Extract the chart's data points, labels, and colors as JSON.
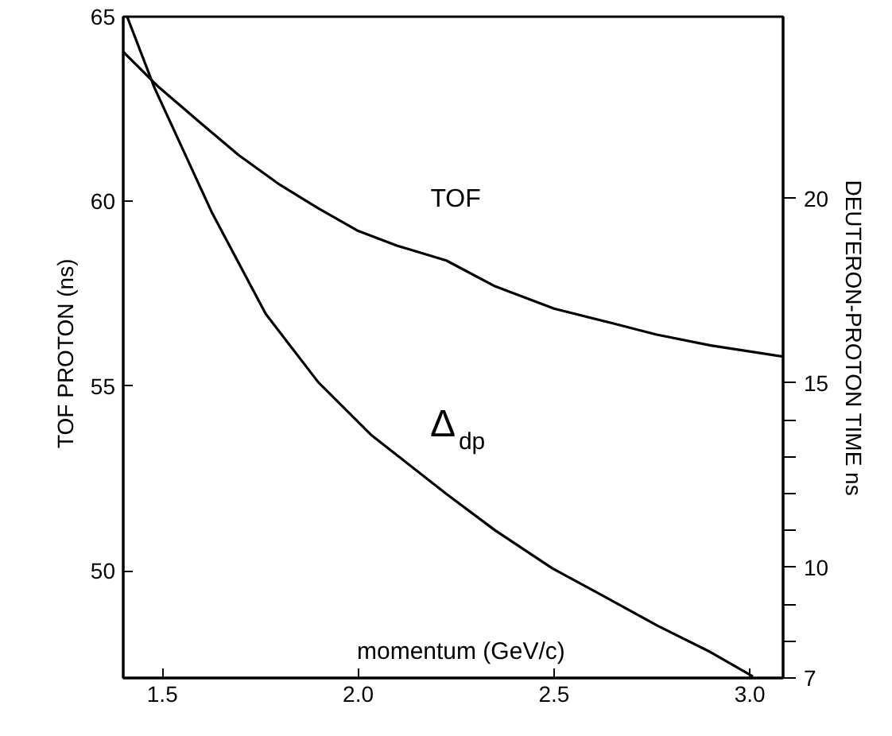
{
  "chart_data": {
    "type": "line",
    "xlabel": "momentum (GeV/c)",
    "ylabel": "TOF  PROTON  (ns)",
    "y2label": "DEUTERON-PROTON  TIME   ns",
    "xlim": [
      1.4,
      3.085
    ],
    "xticks": [
      1.5,
      {
        "value": 2,
        "label": "2.0"
      },
      2.5,
      {
        "value": 3,
        "label": "3.0"
      }
    ],
    "ylim": [
      47.1,
      65
    ],
    "yticks": [
      50,
      55,
      60,
      65
    ],
    "y2lim": [
      7,
      24.93
    ],
    "y2ticks": [
      7,
      {
        "value": 8,
        "label": null
      },
      {
        "value": 9,
        "label": null
      },
      10,
      {
        "value": 11,
        "label": null
      },
      {
        "value": 12,
        "label": null
      },
      {
        "value": 13,
        "label": null
      },
      {
        "value": 14,
        "label": null
      },
      15,
      20
    ],
    "grid": false,
    "legend": false,
    "marker": "none",
    "line_style": "solid",
    "series": [
      {
        "name": "TOF",
        "color": "#000000",
        "x": [
          1.4,
          1.49,
          1.6,
          1.695,
          1.8,
          1.9,
          2.0,
          2.1,
          2.225,
          2.35,
          2.5,
          2.65,
          2.76,
          2.9,
          3.085
        ],
        "values": [
          64.05,
          63.1,
          62.1,
          61.25,
          60.45,
          59.8,
          59.2,
          58.8,
          58.4,
          57.7,
          57.1,
          56.7,
          56.4,
          56.1,
          55.8
        ]
      },
      {
        "name": "Δ$_{dp}$",
        "color": "#000000",
        "axis": "y2",
        "x": [
          1.41,
          1.48,
          1.626,
          1.764,
          1.898,
          2.033,
          2.224,
          2.35,
          2.496,
          2.63,
          2.764,
          2.9,
          3.008
        ],
        "values": [
          24.93,
          23.0,
          19.63,
          16.87,
          15.02,
          13.59,
          12.0,
          11.0,
          9.97,
          9.2,
          8.42,
          7.7,
          7.04
        ]
      }
    ]
  }
}
